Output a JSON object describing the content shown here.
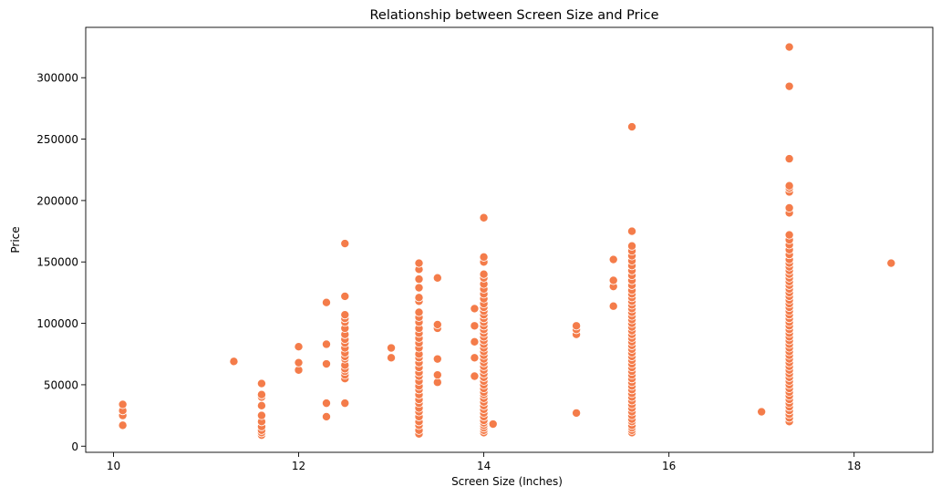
{
  "chart_data": {
    "type": "scatter",
    "title": "Relationship between Screen Size and Price",
    "xlabel": "Screen Size (Inches)",
    "ylabel": "Price",
    "xlim": [
      9.7,
      18.85
    ],
    "ylim": [
      -5000,
      341000
    ],
    "xticks": [
      10,
      12,
      14,
      16,
      18
    ],
    "yticks": [
      0,
      50000,
      100000,
      150000,
      200000,
      250000,
      300000
    ],
    "grid": false,
    "marker_color": "#F47C4A",
    "points_by_x": [
      {
        "x": 10.1,
        "y": [
          17000,
          25000,
          29000,
          34000
        ]
      },
      {
        "x": 11.3,
        "y": [
          69000
        ]
      },
      {
        "x": 11.6,
        "y": [
          9000,
          11000,
          13000,
          16000,
          20000,
          25000,
          33000,
          40000,
          42000,
          51000
        ]
      },
      {
        "x": 12.0,
        "y": [
          62000,
          68000,
          81000
        ]
      },
      {
        "x": 12.3,
        "y": [
          24000,
          35000,
          67000,
          83000,
          117000
        ]
      },
      {
        "x": 12.5,
        "y": [
          35000,
          55000,
          58000,
          61000,
          63000,
          66000,
          71000,
          73000,
          76000,
          80000,
          84000,
          87000,
          91000,
          96000,
          101000,
          104000,
          107000,
          122000,
          165000
        ]
      },
      {
        "x": 13.0,
        "y": [
          72000,
          80000
        ]
      },
      {
        "x": 13.3,
        "y": [
          10000,
          13000,
          17000,
          20000,
          24000,
          28000,
          31000,
          35000,
          38000,
          42000,
          46000,
          49000,
          53000,
          57000,
          60000,
          64000,
          68000,
          72000,
          75000,
          80000,
          84000,
          88000,
          92000,
          96000,
          101000,
          105000,
          109000,
          118000,
          121000,
          129000,
          136000,
          144000,
          149000
        ]
      },
      {
        "x": 13.5,
        "y": [
          52000,
          58000,
          71000,
          96000,
          99000,
          137000
        ]
      },
      {
        "x": 13.9,
        "y": [
          57000,
          72000,
          85000,
          98000,
          112000
        ]
      },
      {
        "x": 14.0,
        "y": [
          11000,
          13000,
          15000,
          17000,
          19000,
          21000,
          24000,
          27000,
          30000,
          33000,
          36000,
          39000,
          42000,
          44000,
          47000,
          50000,
          53000,
          56000,
          59000,
          62000,
          65000,
          68000,
          71000,
          74000,
          77000,
          80000,
          83000,
          86000,
          89000,
          92000,
          95000,
          98000,
          101000,
          104000,
          107000,
          110000,
          113000,
          116000,
          120000,
          124000,
          128000,
          132000,
          137000,
          140000,
          150000,
          154000,
          186000
        ]
      },
      {
        "x": 14.1,
        "y": [
          18000
        ]
      },
      {
        "x": 15.0,
        "y": [
          27000,
          91000,
          95000,
          98000
        ]
      },
      {
        "x": 15.4,
        "y": [
          114000,
          130000,
          135000,
          152000
        ]
      },
      {
        "x": 15.6,
        "y": [
          11000,
          13000,
          15000,
          17000,
          20000,
          22000,
          25000,
          28000,
          31000,
          34000,
          37000,
          40000,
          43000,
          46000,
          49000,
          52000,
          55000,
          58000,
          61000,
          64000,
          67000,
          70000,
          73000,
          76000,
          79000,
          82000,
          85000,
          88000,
          91000,
          94000,
          97000,
          100000,
          103000,
          106000,
          109000,
          112000,
          115000,
          118000,
          121000,
          124000,
          127000,
          131000,
          135000,
          139000,
          143000,
          147000,
          151000,
          155000,
          159000,
          163000,
          175000,
          260000
        ]
      },
      {
        "x": 17.0,
        "y": [
          28000
        ]
      },
      {
        "x": 17.3,
        "y": [
          20000,
          23000,
          26000,
          29000,
          32000,
          35000,
          38000,
          41000,
          44000,
          47000,
          50000,
          53000,
          56000,
          59000,
          62000,
          65000,
          68000,
          71000,
          74000,
          77000,
          80000,
          83000,
          86000,
          89000,
          92000,
          95000,
          98000,
          101000,
          104000,
          107000,
          110000,
          113000,
          116000,
          119000,
          122000,
          125000,
          128000,
          131000,
          134000,
          137000,
          140000,
          143000,
          146000,
          149000,
          152000,
          156000,
          160000,
          164000,
          168000,
          172000,
          190000,
          194000,
          207000,
          210000,
          212000,
          234000,
          293000,
          325000
        ]
      },
      {
        "x": 18.4,
        "y": [
          149000
        ]
      }
    ]
  }
}
